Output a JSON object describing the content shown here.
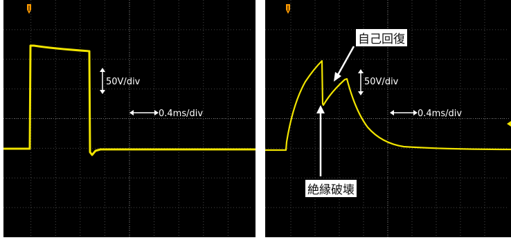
{
  "colors": {
    "screen_bg": "#000000",
    "grid": "#4a4a4a",
    "grid_center": "#6e6e6e",
    "trace": "#f2e500",
    "marker": "#ff9a00",
    "annotation": "#ffffff",
    "callout_text": "#111111"
  },
  "marker_icon": "trigger-marker-icon",
  "left": {
    "volts_label": "50V/div",
    "time_label": "0.4ms/div"
  },
  "right": {
    "volts_label": "50V/div",
    "time_label": "0.4ms/div",
    "callout_recovery": "自己回復",
    "callout_breakdown": "絶縁破壊"
  }
}
